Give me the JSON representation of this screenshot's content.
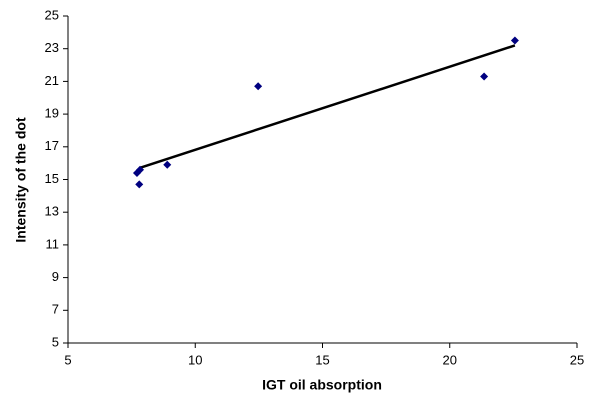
{
  "chart_data": {
    "type": "scatter",
    "x_label": "IGT oil absorption",
    "y_label": "Intensity of the dot",
    "series": [
      {
        "color": "#000080",
        "x": [
          7.71,
          7.83,
          7.8,
          8.9,
          12.47,
          21.35,
          22.56
        ],
        "values": [
          15.4,
          15.6,
          14.7,
          15.9,
          20.7,
          21.3,
          23.5
        ]
      }
    ],
    "trendline": {
      "x": [
        7.8,
        22.56
      ],
      "y": [
        15.7,
        23.2
      ],
      "color": "#000000"
    },
    "xlim": [
      5,
      25
    ],
    "xticks": [
      5,
      10,
      15,
      20,
      25
    ],
    "ylim": [
      5,
      25
    ],
    "yticks": [
      5,
      7,
      9,
      11,
      13,
      15,
      17,
      19,
      21,
      23,
      25
    ],
    "grid": false
  }
}
